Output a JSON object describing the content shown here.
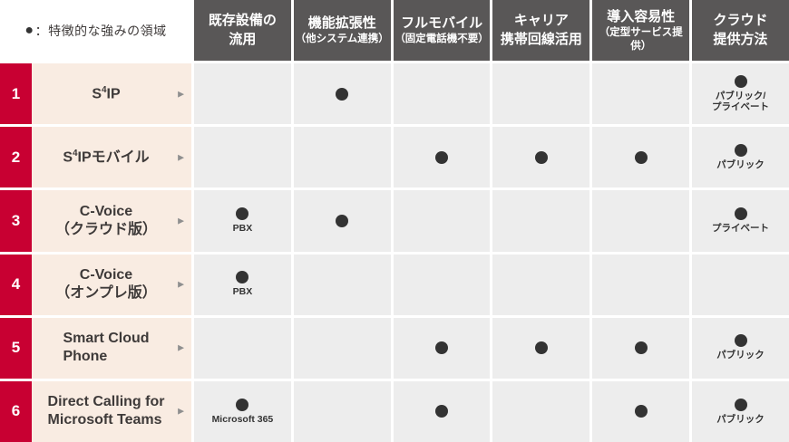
{
  "legend": {
    "marker": "●",
    "text": "：特徴的な強みの領域"
  },
  "icons": {
    "row_arrow": "▶",
    "strength_dot": "●"
  },
  "colors": {
    "accent_red": "#c80032",
    "row_label_bg": "#f9ece2",
    "header_bg": "#595757",
    "cell_bg": "#ededed",
    "dot": "#333333"
  },
  "columns": [
    {
      "lines": [
        "既存設備の",
        "流用"
      ],
      "second_line_small": false
    },
    {
      "lines": [
        "機能拡張性",
        "（他システム連携）"
      ],
      "second_line_small": true
    },
    {
      "lines": [
        "フルモバイル",
        "（固定電話機不要）"
      ],
      "second_line_small": true
    },
    {
      "lines": [
        "キャリア",
        "携帯回線活用"
      ],
      "second_line_small": false
    },
    {
      "lines": [
        "導入容易性",
        "（定型サービス提供）"
      ],
      "second_line_small": true
    },
    {
      "lines": [
        "クラウド",
        "提供方法"
      ],
      "second_line_small": false
    }
  ],
  "rows": [
    {
      "num": "1",
      "name": [
        [
          "S",
          {
            "sup": "4"
          },
          "IP"
        ]
      ],
      "align": "center",
      "cells": [
        null,
        {
          "dot": true
        },
        null,
        null,
        null,
        {
          "dot": true,
          "label": [
            "パブリック/",
            "プライベート"
          ]
        }
      ]
    },
    {
      "num": "2",
      "name": [
        [
          "S",
          {
            "sup": "4"
          },
          "IPモバイル"
        ]
      ],
      "align": "center",
      "cells": [
        null,
        null,
        {
          "dot": true
        },
        {
          "dot": true
        },
        {
          "dot": true
        },
        {
          "dot": true,
          "label": [
            "パブリック"
          ]
        }
      ]
    },
    {
      "num": "3",
      "name": [
        [
          "C-Voice"
        ],
        [
          "（クラウド版）"
        ]
      ],
      "align": "center",
      "cells": [
        {
          "dot": true,
          "label": [
            "PBX"
          ]
        },
        {
          "dot": true
        },
        null,
        null,
        null,
        {
          "dot": true,
          "label": [
            "プライベート"
          ]
        }
      ]
    },
    {
      "num": "4",
      "name": [
        [
          "C-Voice"
        ],
        [
          "（オンプレ版）"
        ]
      ],
      "align": "center",
      "cells": [
        {
          "dot": true,
          "label": [
            "PBX"
          ]
        },
        null,
        null,
        null,
        null,
        null
      ]
    },
    {
      "num": "5",
      "name": [
        [
          "Smart Cloud"
        ],
        [
          "Phone"
        ]
      ],
      "align": "left",
      "cells": [
        null,
        null,
        {
          "dot": true
        },
        {
          "dot": true
        },
        {
          "dot": true
        },
        {
          "dot": true,
          "label": [
            "パブリック"
          ]
        }
      ]
    },
    {
      "num": "6",
      "name": [
        [
          "Direct Calling for"
        ],
        [
          "Microsoft Teams"
        ]
      ],
      "align": "left",
      "cells": [
        {
          "dot": true,
          "label": [
            "Microsoft 365"
          ]
        },
        null,
        {
          "dot": true
        },
        null,
        {
          "dot": true
        },
        {
          "dot": true,
          "label": [
            "パブリック"
          ]
        }
      ]
    }
  ]
}
